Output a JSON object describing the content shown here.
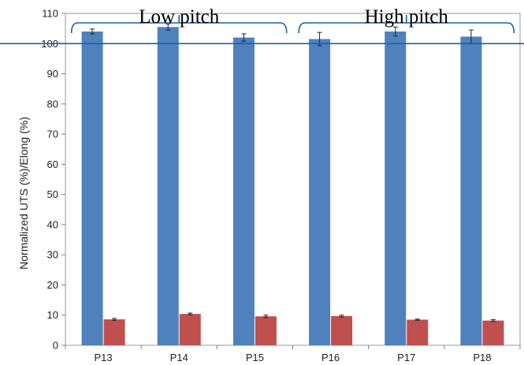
{
  "chart_data": {
    "type": "bar",
    "categories": [
      "P13",
      "P14",
      "P15",
      "P16",
      "P17",
      "P18"
    ],
    "series": [
      {
        "values": [
          104,
          105.5,
          102,
          101.5,
          104,
          102.3
        ],
        "errors": [
          0.8,
          1.0,
          1.2,
          2.2,
          1.5,
          2.2
        ],
        "color": "#4f81bd"
      },
      {
        "values": [
          8.6,
          10.4,
          9.6,
          9.7,
          8.5,
          8.2
        ],
        "errors": [
          0.3,
          0.3,
          0.4,
          0.3,
          0.2,
          0.3
        ],
        "color": "#c0504d"
      }
    ],
    "title": "",
    "xlabel": "",
    "ylabel": "Normalized UTS (%)/Elong (%)",
    "ylim": [
      0,
      110
    ],
    "yticks": [
      0,
      10,
      20,
      30,
      40,
      50,
      60,
      70,
      80,
      90,
      100,
      110
    ],
    "reference_line": {
      "y": 100,
      "color": "#1f5fa6"
    },
    "groups": [
      {
        "label": "Low pitch",
        "from": "P13",
        "to": "P15"
      },
      {
        "label": "High pitch",
        "from": "P16",
        "to": "P18"
      }
    ],
    "grid": false,
    "legend": "none"
  }
}
